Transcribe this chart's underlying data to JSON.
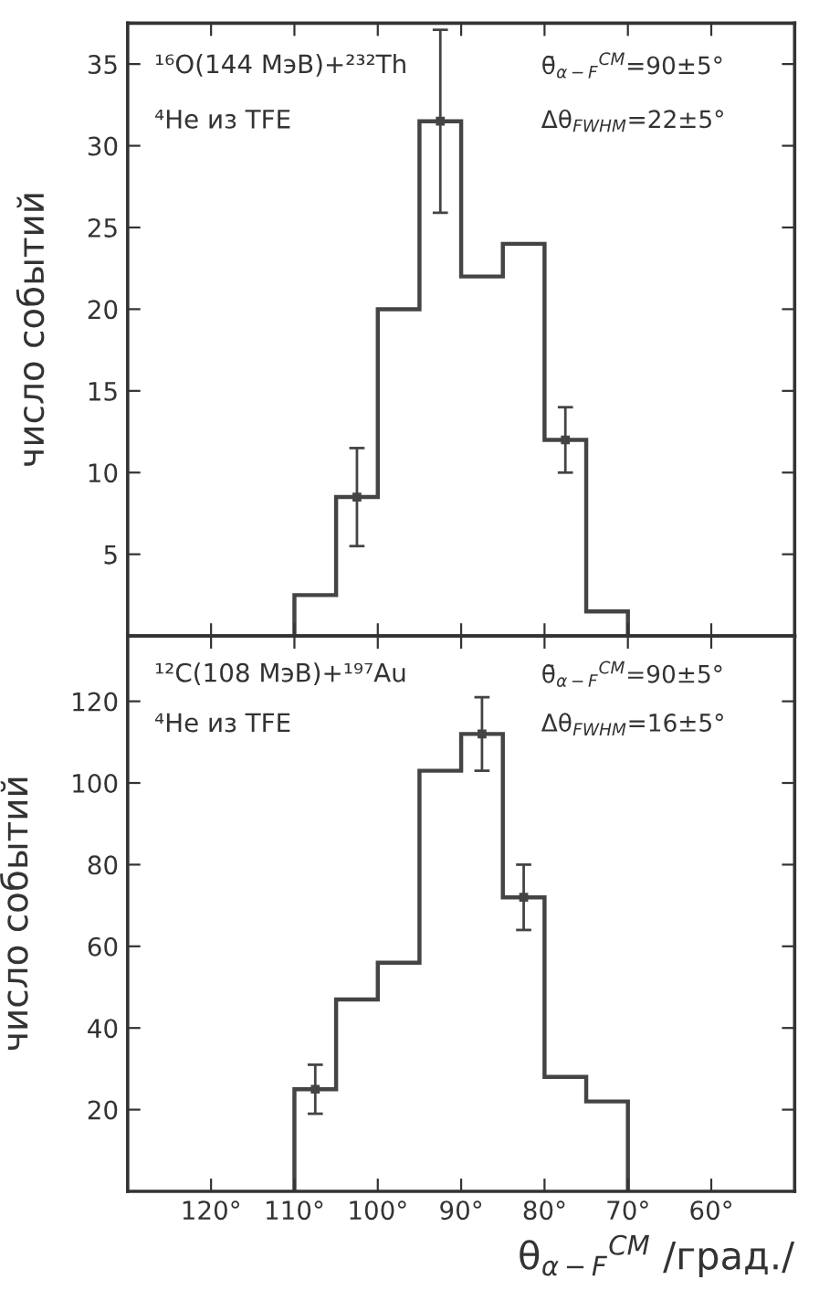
{
  "chart_data": [
    {
      "type": "histogram",
      "ylabel": "число событий",
      "bins": [
        70,
        75,
        80,
        85,
        90,
        95,
        100,
        105,
        110
      ],
      "values": [
        1.5,
        12,
        24,
        22,
        31.5,
        20,
        8.5,
        2.5
      ],
      "color": "#444444",
      "series": [
        {
          "type": "scatter",
          "x": [
            77.5,
            92.5,
            102.5
          ],
          "values": [
            12,
            31.5,
            8.5
          ],
          "errors": [
            2,
            5.6,
            3
          ],
          "color": "#444444"
        }
      ],
      "marker": "square",
      "xlim": [
        130,
        50
      ],
      "xticks": [
        {
          "value": 120,
          "label": null
        },
        {
          "value": 110,
          "label": null
        },
        {
          "value": 100,
          "label": null
        },
        {
          "value": 90,
          "label": null
        },
        {
          "value": 80,
          "label": null
        },
        {
          "value": 70,
          "label": null
        },
        {
          "value": 60,
          "label": null
        }
      ],
      "ylim": [
        0,
        37.5
      ],
      "yticks": [
        5,
        10,
        15,
        20,
        25,
        30,
        35
      ],
      "tick_labels": "y",
      "grid": false,
      "legend": false,
      "annotations": [
        "¹⁶O(144 МэВ)+²³²Th",
        "⁴He из TFE",
        "θ̄$_{α−F}$$^{CM}$=90±5°",
        "Δθ$_{FWHM}$=22±5°"
      ]
    },
    {
      "type": "histogram",
      "ylabel": "число событий",
      "xlabel": "θ$_{α−F}$$^{CM}$ /град./",
      "bins": [
        70,
        75,
        80,
        85,
        90,
        95,
        100,
        105,
        110
      ],
      "values": [
        22,
        28,
        72,
        112,
        103,
        56,
        47,
        25
      ],
      "color": "#444444",
      "series": [
        {
          "type": "scatter",
          "x": [
            82.5,
            87.5,
            107.5
          ],
          "values": [
            72,
            112,
            25
          ],
          "errors": [
            8,
            9,
            6
          ],
          "color": "#444444"
        }
      ],
      "marker": "square",
      "xlim": [
        130,
        50
      ],
      "xticks": [
        {
          "value": 120,
          "label": "120°"
        },
        {
          "value": 110,
          "label": "110°"
        },
        {
          "value": 100,
          "label": "100°"
        },
        {
          "value": 90,
          "label": "90°"
        },
        {
          "value": 80,
          "label": "80°"
        },
        {
          "value": 70,
          "label": "70°"
        },
        {
          "value": 60,
          "label": "60°"
        }
      ],
      "ylim": [
        0,
        136
      ],
      "yticks": [
        20,
        40,
        60,
        80,
        100,
        120
      ],
      "grid": false,
      "legend": false,
      "annotations": [
        "¹²C(108 МэВ)+¹⁹⁷Au",
        "⁴He из TFE",
        "θ̄$_{α−F}$$^{CM}$=90±5°",
        "Δθ$_{FWHM}$=16±5°"
      ]
    }
  ]
}
